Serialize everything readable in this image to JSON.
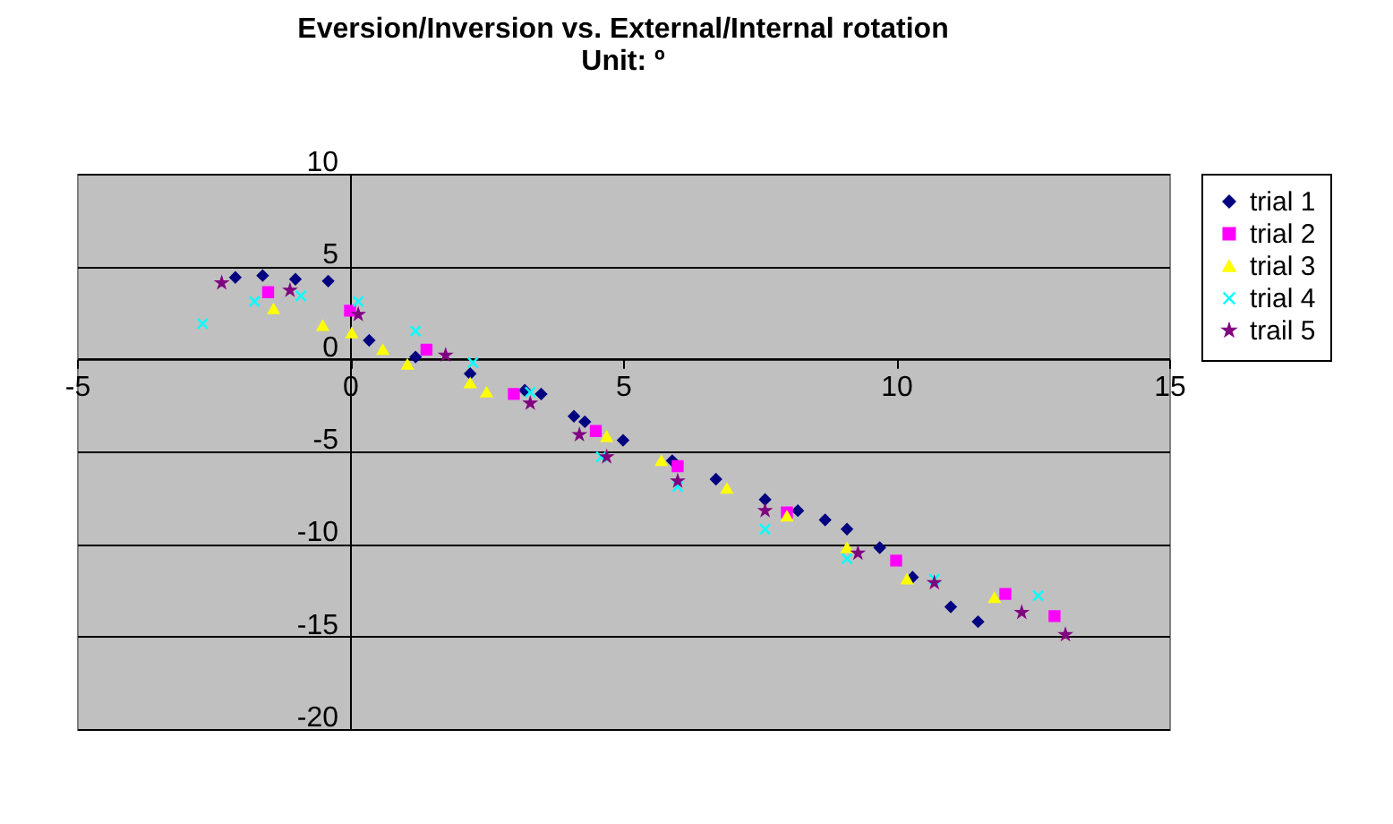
{
  "chart_data": {
    "type": "scatter",
    "title": "Eversion/Inversion vs. External/Internal rotation",
    "subtitle": "Unit: º",
    "xlim": [
      -5,
      15
    ],
    "ylim": [
      -20,
      10
    ],
    "xticks": [
      -5,
      0,
      5,
      10,
      15
    ],
    "yticks": [
      -20,
      -15,
      -10,
      -5,
      0,
      5,
      10
    ],
    "grid": "y",
    "legend": "right",
    "series": [
      {
        "name": "trial 1",
        "color": "#000080",
        "marker": "diamond",
        "x": [
          -2.1,
          -1.6,
          -1.0,
          -0.4,
          0.35,
          1.2,
          2.2,
          3.2,
          3.5,
          4.1,
          4.3,
          5.0,
          5.9,
          6.7,
          7.6,
          8.2,
          8.7,
          9.1,
          9.7,
          10.3,
          11.0,
          11.5
        ],
        "values": [
          4.4,
          4.5,
          4.3,
          4.2,
          1.0,
          0.1,
          -0.8,
          -1.7,
          -1.9,
          -3.1,
          -3.4,
          -4.4,
          -5.5,
          -6.5,
          -7.6,
          -8.2,
          -8.7,
          -9.2,
          -10.2,
          -11.8,
          -13.4,
          -14.2
        ]
      },
      {
        "name": "trial 2",
        "color": "#ff00ff",
        "marker": "square",
        "x": [
          -1.5,
          0.0,
          1.4,
          3.0,
          4.5,
          6.0,
          8.0,
          10.0,
          12.0,
          12.9
        ],
        "values": [
          3.6,
          2.6,
          0.5,
          -1.9,
          -3.9,
          -5.8,
          -8.3,
          -10.9,
          -12.7,
          -13.9
        ]
      },
      {
        "name": "trial 3",
        "color": "#ffff00",
        "marker": "triangle",
        "x": [
          -1.4,
          -0.5,
          0.03,
          0.6,
          1.05,
          2.2,
          2.5,
          4.7,
          5.7,
          6.9,
          8.0,
          9.1,
          10.2,
          11.8
        ],
        "values": [
          2.7,
          1.8,
          1.4,
          0.5,
          -0.3,
          -1.3,
          -1.8,
          -4.2,
          -5.5,
          -7.0,
          -8.5,
          -10.2,
          -11.9,
          -12.9
        ]
      },
      {
        "name": "trial 4",
        "color": "#00ffff",
        "marker": "cross",
        "x": [
          -2.7,
          -1.75,
          -0.9,
          0.15,
          1.2,
          2.25,
          3.3,
          4.6,
          6.0,
          7.6,
          9.1,
          10.7,
          12.6
        ],
        "values": [
          1.9,
          3.1,
          3.4,
          3.1,
          1.5,
          -0.2,
          -1.8,
          -5.3,
          -6.9,
          -9.2,
          -10.8,
          -11.9,
          -12.8
        ]
      },
      {
        "name": "trail 5",
        "color": "#800080",
        "marker": "star",
        "x": [
          -2.35,
          -1.1,
          0.15,
          1.75,
          3.3,
          4.2,
          4.7,
          6.0,
          7.6,
          9.3,
          10.7,
          12.3,
          13.1
        ],
        "values": [
          4.1,
          3.7,
          2.4,
          0.2,
          -2.4,
          -4.1,
          -5.3,
          -6.6,
          -8.2,
          -10.5,
          -12.1,
          -13.7,
          -14.9
        ]
      }
    ]
  }
}
